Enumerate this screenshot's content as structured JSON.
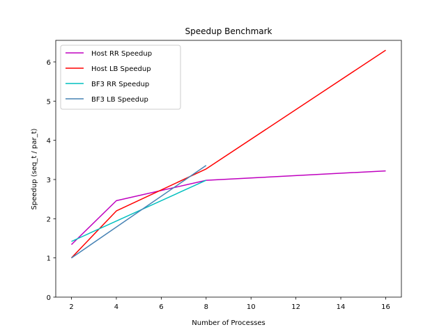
{
  "chart_data": {
    "type": "line",
    "title": "Speedup Benchmark",
    "xlabel": "Number of Processes",
    "ylabel": "Speedup (seq_t / par_t)",
    "xlim": [
      1.3,
      16.7
    ],
    "ylim": [
      0,
      6.55
    ],
    "xticks": [
      2,
      4,
      6,
      8,
      10,
      12,
      14,
      16
    ],
    "yticks": [
      0,
      1,
      2,
      3,
      4,
      5,
      6
    ],
    "grid": false,
    "legend_position": "top-left",
    "series": [
      {
        "name": "Host RR Speedup",
        "color": "#bf00bf",
        "x": [
          2,
          4,
          8,
          16
        ],
        "y": [
          1.34,
          2.46,
          2.98,
          3.22
        ]
      },
      {
        "name": "Host LB Speedup",
        "color": "#ff0000",
        "x": [
          2,
          4,
          8,
          16
        ],
        "y": [
          1.0,
          2.2,
          3.27,
          6.3
        ]
      },
      {
        "name": "BF3 RR Speedup",
        "color": "#00bfbf",
        "x": [
          2,
          8
        ],
        "y": [
          1.42,
          2.98
        ]
      },
      {
        "name": "BF3 LB Speedup",
        "color": "#4682b4",
        "x": [
          2,
          8
        ],
        "y": [
          1.0,
          3.36
        ]
      }
    ]
  }
}
